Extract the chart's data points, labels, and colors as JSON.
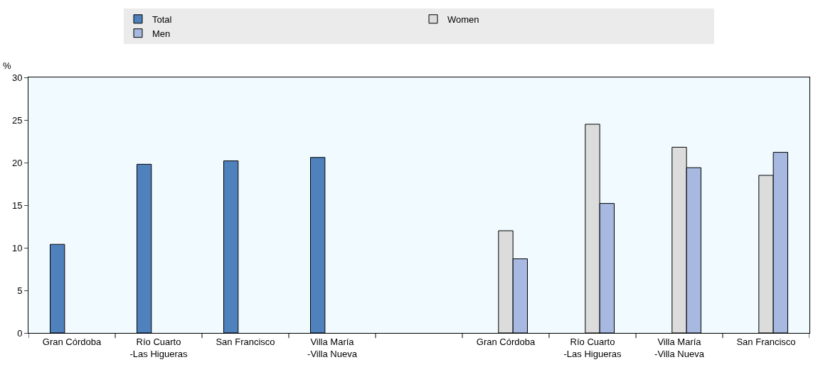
{
  "chart_data": {
    "type": "bar",
    "ylabel": "%",
    "categories": [
      "Gran Córdoba",
      "Río Cuarto\n-Las Higueras",
      "San Francisco",
      "Villa María\n-Villa Nueva",
      null,
      "Gran Córdoba",
      "Río Cuarto\n-Las Higueras",
      "Villa María\n-Villa Nueva",
      "San Francisco"
    ],
    "series": [
      {
        "name": "Total",
        "color": "#4f81bd",
        "values": [
          10.4,
          19.8,
          20.2,
          20.6,
          null,
          null,
          null,
          null,
          null
        ]
      },
      {
        "name": "Women",
        "color": "#dcdcdc",
        "values": [
          null,
          null,
          null,
          null,
          null,
          12.0,
          24.5,
          21.8,
          18.5
        ]
      },
      {
        "name": "Men",
        "color": "#a7b9e1",
        "values": [
          null,
          null,
          null,
          null,
          null,
          8.7,
          15.2,
          19.4,
          21.2
        ]
      }
    ],
    "ylim": [
      0,
      30
    ],
    "yticks": [
      0,
      5,
      10,
      15,
      20,
      25,
      30
    ],
    "grid": false,
    "legend": "top"
  }
}
